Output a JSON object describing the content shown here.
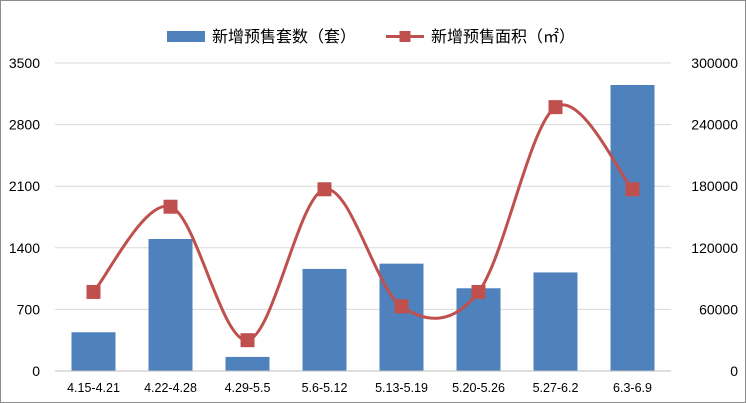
{
  "chart_data": {
    "type": "bar",
    "categories": [
      "4.15-4.21",
      "4.22-4.28",
      "4.29-5.5",
      "5.6-5.12",
      "5.13-5.19",
      "5.20-5.26",
      "5.27-6.2",
      "6.3-6.9"
    ],
    "series": [
      {
        "name": "新增预售套数（套）",
        "type": "bar",
        "axis": "left",
        "color": "#4f81bd",
        "values": [
          440,
          1500,
          160,
          1160,
          1220,
          940,
          1120,
          3250
        ]
      },
      {
        "name": "新增预售面积（㎡）",
        "type": "line",
        "smooth": true,
        "marker": "square",
        "axis": "right",
        "color": "#c0504d",
        "values": [
          77000,
          160000,
          30000,
          177000,
          63000,
          77000,
          257000,
          177000
        ]
      }
    ],
    "y_left": {
      "min": 0,
      "max": 3500,
      "ticks": [
        "0",
        "700",
        "1400",
        "2100",
        "2800",
        "3500"
      ]
    },
    "y_right": {
      "min": 0,
      "max": 300000,
      "ticks": [
        "0",
        "60000",
        "120000",
        "180000",
        "240000",
        "300000"
      ]
    },
    "grid": "horizontal",
    "legend_position": "top"
  }
}
